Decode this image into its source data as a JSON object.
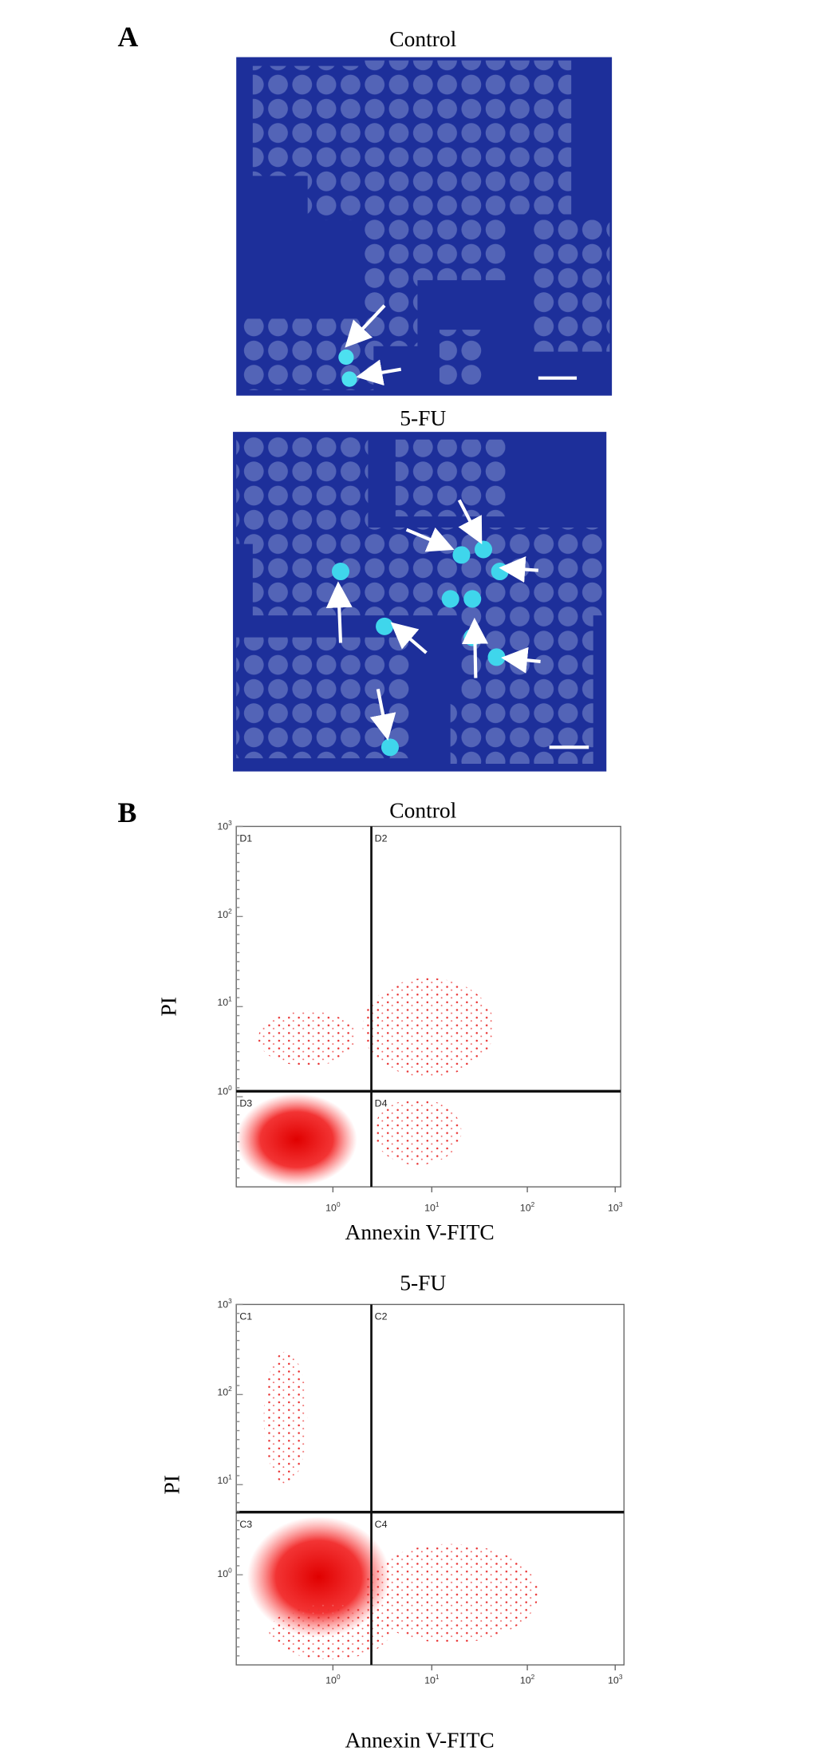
{
  "figure": {
    "panel_a": {
      "label": "A",
      "control_title": "Control",
      "treated_title": "5-FU"
    },
    "panel_b": {
      "label": "B",
      "plots": [
        {
          "title": "Control",
          "y_label": "PI",
          "x_label": "Annexin V-FITC",
          "quadrants": [
            "D1",
            "D2",
            "D3",
            "D4"
          ]
        },
        {
          "title": "5-FU",
          "y_label": "PI",
          "x_label": "Annexin V-FITC",
          "quadrants": [
            "C1",
            "C2",
            "C3",
            "C4"
          ]
        }
      ],
      "y_ticks": [
        {
          "base": "10",
          "exponent": "3"
        },
        {
          "base": "10",
          "exponent": "2"
        },
        {
          "base": "10",
          "exponent": "1"
        },
        {
          "base": "10",
          "exponent": "0"
        }
      ],
      "x_ticks": [
        {
          "base": "10",
          "exponent": "0"
        },
        {
          "base": "10",
          "exponent": "1"
        },
        {
          "base": "10",
          "exponent": "2"
        },
        {
          "base": "10",
          "exponent": "3"
        }
      ]
    }
  }
}
